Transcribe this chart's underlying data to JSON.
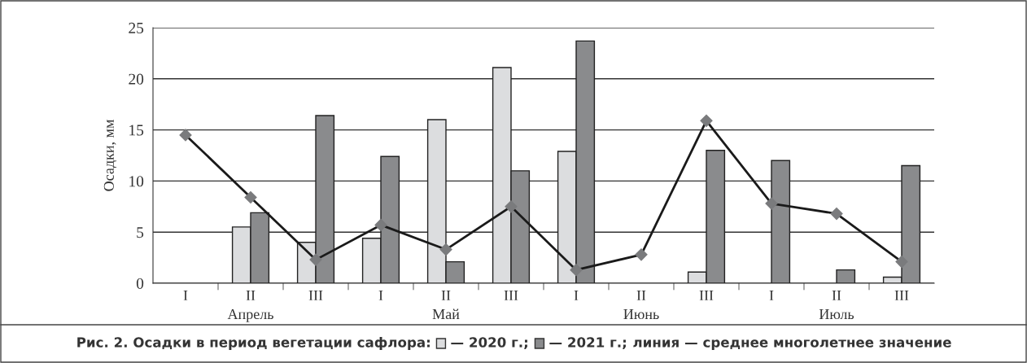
{
  "chart_data": {
    "type": "bar",
    "title": "Рис. 2. Осадки в период вегетации сафлора:",
    "subtitle": "линия — среднее многолетнее значение",
    "ylabel": "Осадки, мм",
    "categories": [
      "I",
      "II",
      "III",
      "I",
      "II",
      "III",
      "I",
      "II",
      "III",
      "I",
      "II",
      "III"
    ],
    "series": [
      {
        "name": "— 2020 г.;",
        "color": "#dcdddf",
        "values": [
          null,
          5.5,
          4.0,
          4.4,
          16.0,
          21.1,
          12.9,
          null,
          1.1,
          null,
          null,
          0.6
        ]
      },
      {
        "name": "— 2021 г.;",
        "color": "#8a8b8d",
        "values": [
          null,
          6.9,
          16.4,
          12.4,
          2.1,
          11.0,
          23.7,
          null,
          13.0,
          12.0,
          1.3,
          11.5
        ]
      },
      {
        "type": "line",
        "color": "#1a1a1a",
        "marker": "diamond",
        "values": [
          14.5,
          8.4,
          2.3,
          5.7,
          3.3,
          7.5,
          1.3,
          2.8,
          15.9,
          7.8,
          6.8,
          2.1
        ]
      }
    ],
    "annotations": [
      "Апрель",
      "Май",
      "Июнь",
      "Июль"
    ],
    "ylim": [
      0,
      25
    ],
    "yticks": [
      0,
      5,
      10,
      15,
      20,
      25
    ],
    "grid": "y",
    "legend": "bottom"
  }
}
